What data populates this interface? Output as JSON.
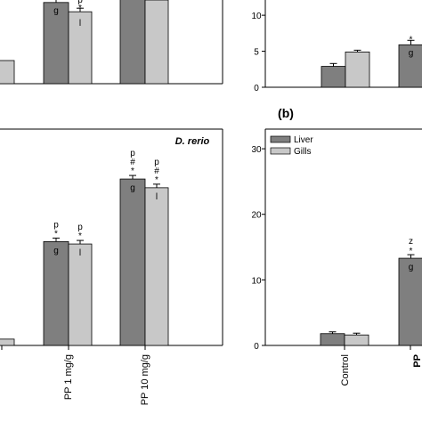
{
  "colors": {
    "liver": "#7f7f7f",
    "gills": "#c8c8c8",
    "axis": "#000000"
  },
  "chart_data": [
    {
      "id": "top-left",
      "type": "bar",
      "categories": [
        "",
        "",
        ""
      ],
      "series": [
        {
          "name": "",
          "values": [
            0.5,
            5.7,
            6.3
          ],
          "labels": [
            "",
            "g",
            "g"
          ]
        },
        {
          "name": "",
          "values": [
            0.5,
            5.05,
            5.3
          ],
          "labels": [
            "",
            "p*l",
            ""
          ]
        }
      ],
      "title": ""
    },
    {
      "id": "top-right",
      "type": "bar",
      "yticks": [
        0,
        5,
        10
      ],
      "ylim": [
        0,
        11.5
      ],
      "categories": [
        "Control",
        "PP"
      ],
      "series": [
        {
          "name": "Liver",
          "values": [
            2.9,
            5.9
          ],
          "errors": [
            0.4,
            0.6
          ],
          "labels": [
            "",
            "*g"
          ]
        },
        {
          "name": "Gills",
          "values": [
            4.9,
            null
          ],
          "errors": [
            0.1,
            null
          ]
        }
      ]
    },
    {
      "id": "bottom-left",
      "type": "bar",
      "annotation": "D. rerio",
      "categories": [
        "",
        "PP 1 mg/g",
        "PP 10 mg/g"
      ],
      "series": [
        {
          "name": "",
          "values": [
            0.8,
            13.1,
            21.0
          ],
          "labels": [
            "",
            "p*g",
            "p#*g"
          ]
        },
        {
          "name": "",
          "values": [
            0.8,
            12.8,
            19.9
          ],
          "labels": [
            "",
            "p*l",
            "p#*l"
          ]
        }
      ]
    },
    {
      "id": "bottom-right",
      "type": "bar",
      "panel_label": "(b)",
      "yticks": [
        0,
        10,
        20,
        30
      ],
      "ylim": [
        0,
        30
      ],
      "categories": [
        "Control",
        "PP"
      ],
      "legend": [
        "Liver",
        "Gills"
      ],
      "series": [
        {
          "name": "Liver",
          "values": [
            1.8,
            13.3
          ],
          "errors": [
            0.2,
            0.5
          ],
          "labels": [
            "",
            "z*g"
          ]
        },
        {
          "name": "Gills",
          "values": [
            1.6,
            null
          ],
          "errors": [
            0.2,
            null
          ]
        }
      ]
    }
  ]
}
